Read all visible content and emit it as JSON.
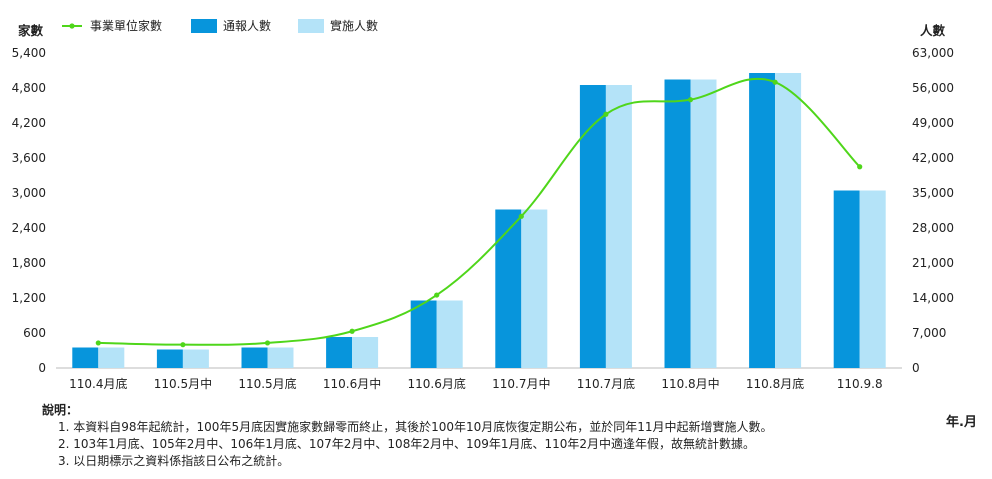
{
  "chart_data": {
    "type": "bar",
    "categories": [
      "110.4月底",
      "110.5月中",
      "110.5月底",
      "110.6月中",
      "110.6月底",
      "110.7月中",
      "110.7月底",
      "110.8月中",
      "110.8月底",
      "110.9.8"
    ],
    "series": [
      {
        "name": "事業單位家數",
        "kind": "line",
        "axis": "left",
        "color": "#4fd61a",
        "values": [
          430,
          400,
          430,
          630,
          1250,
          2600,
          4350,
          4600,
          4900,
          3450
        ]
      },
      {
        "name": "通報人數",
        "kind": "bar",
        "axis": "right",
        "color": "#0795dc",
        "values": [
          4100,
          3700,
          4100,
          6200,
          13500,
          31700,
          56600,
          57700,
          59000,
          35500
        ]
      },
      {
        "name": "實施人數",
        "kind": "bar",
        "axis": "right",
        "color": "#b4e3f8",
        "values": [
          4100,
          3700,
          4100,
          6200,
          13500,
          31700,
          56600,
          57700,
          59000,
          35500
        ]
      }
    ],
    "ylabel_left": "家數",
    "ylabel_right": "人數",
    "xlabel": "年.月",
    "ylim_left": [
      0,
      5400
    ],
    "ylim_right": [
      0,
      63000
    ],
    "yticks_left": [
      "5,400",
      "4,800",
      "4,200",
      "3,600",
      "3,000",
      "2,400",
      "1,800",
      "1,200",
      "600",
      "0"
    ],
    "yticks_right": [
      "63,000",
      "56,000",
      "49,000",
      "42,000",
      "35,000",
      "28,000",
      "21,000",
      "14,000",
      "7,000",
      "0"
    ],
    "grid": false,
    "legend_position": "top-left"
  },
  "notes": {
    "heading": "說明：",
    "items": [
      "1. 本資料自98年起統計，100年5月底因實施家數歸零而終止，其後於100年10月底恢復定期公布，並於同年11月中起新增實施人數。",
      "2. 103年1月底、105年2月中、106年1月底、107年2月中、108年2月中、109年1月底、110年2月中適逢年假，故無統計數據。",
      "3. 以日期標示之資料係指該日公布之統計。"
    ]
  }
}
